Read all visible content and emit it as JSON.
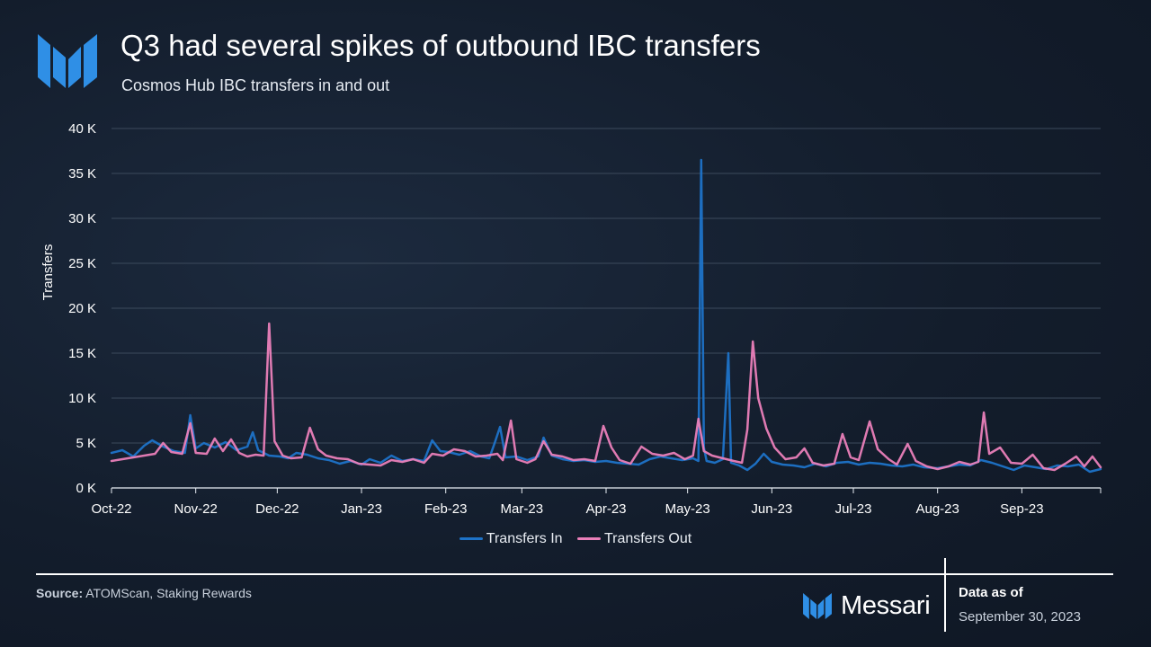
{
  "header": {
    "title": "Q3 had several spikes of outbound IBC transfers",
    "subtitle": "Cosmos Hub IBC transfers in and out",
    "logo_icon": "messari-logo-icon"
  },
  "chart_data": {
    "type": "line",
    "ylabel": "Transfers",
    "xlabel": "",
    "ylim": [
      0,
      40000
    ],
    "y_ticks": [
      {
        "value": 0,
        "label": "0 K"
      },
      {
        "value": 5000,
        "label": "5 K"
      },
      {
        "value": 10000,
        "label": "10 K"
      },
      {
        "value": 15000,
        "label": "15 K"
      },
      {
        "value": 20000,
        "label": "20 K"
      },
      {
        "value": 25000,
        "label": "25 K"
      },
      {
        "value": 30000,
        "label": "30 K"
      },
      {
        "value": 35000,
        "label": "35 K"
      },
      {
        "value": 40000,
        "label": "40 K"
      }
    ],
    "x_range": [
      "2022-10-01",
      "2023-09-30"
    ],
    "x_ticks": [
      {
        "date": "2022-10-01",
        "label": "Oct-22"
      },
      {
        "date": "2022-11-01",
        "label": "Nov-22"
      },
      {
        "date": "2022-12-01",
        "label": "Dec-22"
      },
      {
        "date": "2023-01-01",
        "label": "Jan-23"
      },
      {
        "date": "2023-02-01",
        "label": "Feb-23"
      },
      {
        "date": "2023-03-01",
        "label": "Mar-23"
      },
      {
        "date": "2023-04-01",
        "label": "Apr-23"
      },
      {
        "date": "2023-05-01",
        "label": "May-23"
      },
      {
        "date": "2023-06-01",
        "label": "Jun-23"
      },
      {
        "date": "2023-07-01",
        "label": "Jul-23"
      },
      {
        "date": "2023-08-01",
        "label": "Aug-23"
      },
      {
        "date": "2023-09-01",
        "label": "Sep-23"
      }
    ],
    "grid": true,
    "legend_position": "bottom-center",
    "series": [
      {
        "name": "Transfers In",
        "color": "#1e73c8",
        "points": [
          [
            "2022-10-01",
            3900
          ],
          [
            "2022-10-05",
            4200
          ],
          [
            "2022-10-09",
            3500
          ],
          [
            "2022-10-13",
            4700
          ],
          [
            "2022-10-16",
            5300
          ],
          [
            "2022-10-20",
            4600
          ],
          [
            "2022-10-24",
            4100
          ],
          [
            "2022-10-28",
            3900
          ],
          [
            "2022-10-30",
            8100
          ],
          [
            "2022-11-01",
            4400
          ],
          [
            "2022-11-04",
            5000
          ],
          [
            "2022-11-08",
            4500
          ],
          [
            "2022-11-12",
            5100
          ],
          [
            "2022-11-16",
            4200
          ],
          [
            "2022-11-20",
            4600
          ],
          [
            "2022-11-22",
            6200
          ],
          [
            "2022-11-24",
            4200
          ],
          [
            "2022-11-28",
            3600
          ],
          [
            "2022-12-02",
            3500
          ],
          [
            "2022-12-05",
            3300
          ],
          [
            "2022-12-08",
            3900
          ],
          [
            "2022-12-12",
            3700
          ],
          [
            "2022-12-16",
            3300
          ],
          [
            "2022-12-20",
            3100
          ],
          [
            "2022-12-24",
            2700
          ],
          [
            "2022-12-28",
            3000
          ],
          [
            "2023-01-01",
            2600
          ],
          [
            "2023-01-04",
            3200
          ],
          [
            "2023-01-08",
            2800
          ],
          [
            "2023-01-12",
            3600
          ],
          [
            "2023-01-16",
            3000
          ],
          [
            "2023-01-20",
            3200
          ],
          [
            "2023-01-24",
            3000
          ],
          [
            "2023-01-27",
            5300
          ],
          [
            "2023-01-30",
            4100
          ],
          [
            "2023-02-02",
            4000
          ],
          [
            "2023-02-06",
            3700
          ],
          [
            "2023-02-10",
            4100
          ],
          [
            "2023-02-14",
            3500
          ],
          [
            "2023-02-17",
            3300
          ],
          [
            "2023-02-19",
            5000
          ],
          [
            "2023-02-21",
            6800
          ],
          [
            "2023-02-23",
            3400
          ],
          [
            "2023-02-27",
            3500
          ],
          [
            "2023-03-03",
            3100
          ],
          [
            "2023-03-07",
            3500
          ],
          [
            "2023-03-09",
            5600
          ],
          [
            "2023-03-12",
            3600
          ],
          [
            "2023-03-16",
            3200
          ],
          [
            "2023-03-20",
            3000
          ],
          [
            "2023-03-24",
            3100
          ],
          [
            "2023-03-28",
            2900
          ],
          [
            "2023-04-01",
            3000
          ],
          [
            "2023-04-05",
            2800
          ],
          [
            "2023-04-09",
            2700
          ],
          [
            "2023-04-13",
            2600
          ],
          [
            "2023-04-17",
            3200
          ],
          [
            "2023-04-21",
            3500
          ],
          [
            "2023-04-25",
            3300
          ],
          [
            "2023-04-29",
            3100
          ],
          [
            "2023-05-03",
            3300
          ],
          [
            "2023-05-05",
            3000
          ],
          [
            "2023-05-06",
            36500
          ],
          [
            "2023-05-07",
            4500
          ],
          [
            "2023-05-08",
            3000
          ],
          [
            "2023-05-11",
            2800
          ],
          [
            "2023-05-14",
            3200
          ],
          [
            "2023-05-16",
            15000
          ],
          [
            "2023-05-17",
            2800
          ],
          [
            "2023-05-20",
            2500
          ],
          [
            "2023-05-23",
            2000
          ],
          [
            "2023-05-26",
            2700
          ],
          [
            "2023-05-29",
            3800
          ],
          [
            "2023-06-01",
            2900
          ],
          [
            "2023-06-05",
            2600
          ],
          [
            "2023-06-09",
            2500
          ],
          [
            "2023-06-13",
            2300
          ],
          [
            "2023-06-17",
            2700
          ],
          [
            "2023-06-21",
            2400
          ],
          [
            "2023-06-25",
            2800
          ],
          [
            "2023-06-29",
            2900
          ],
          [
            "2023-07-03",
            2600
          ],
          [
            "2023-07-07",
            2800
          ],
          [
            "2023-07-11",
            2700
          ],
          [
            "2023-07-15",
            2500
          ],
          [
            "2023-07-19",
            2400
          ],
          [
            "2023-07-23",
            2600
          ],
          [
            "2023-07-27",
            2300
          ],
          [
            "2023-08-01",
            2200
          ],
          [
            "2023-08-05",
            2400
          ],
          [
            "2023-08-09",
            2600
          ],
          [
            "2023-08-13",
            2500
          ],
          [
            "2023-08-17",
            3100
          ],
          [
            "2023-08-21",
            2800
          ],
          [
            "2023-08-25",
            2400
          ],
          [
            "2023-08-29",
            2000
          ],
          [
            "2023-09-02",
            2500
          ],
          [
            "2023-09-06",
            2300
          ],
          [
            "2023-09-10",
            2100
          ],
          [
            "2023-09-14",
            2500
          ],
          [
            "2023-09-18",
            2400
          ],
          [
            "2023-09-22",
            2600
          ],
          [
            "2023-09-26",
            1800
          ],
          [
            "2023-09-30",
            2100
          ]
        ]
      },
      {
        "name": "Transfers Out",
        "color": "#ea7fb9",
        "points": [
          [
            "2022-10-01",
            3000
          ],
          [
            "2022-10-05",
            3200
          ],
          [
            "2022-10-09",
            3400
          ],
          [
            "2022-10-13",
            3600
          ],
          [
            "2022-10-17",
            3800
          ],
          [
            "2022-10-20",
            5000
          ],
          [
            "2022-10-23",
            4000
          ],
          [
            "2022-10-27",
            3800
          ],
          [
            "2022-10-30",
            7200
          ],
          [
            "2022-11-01",
            3900
          ],
          [
            "2022-11-05",
            3800
          ],
          [
            "2022-11-08",
            5500
          ],
          [
            "2022-11-11",
            4100
          ],
          [
            "2022-11-14",
            5400
          ],
          [
            "2022-11-17",
            3900
          ],
          [
            "2022-11-20",
            3500
          ],
          [
            "2022-11-23",
            3700
          ],
          [
            "2022-11-26",
            3600
          ],
          [
            "2022-11-28",
            18300
          ],
          [
            "2022-11-30",
            5200
          ],
          [
            "2022-12-03",
            3600
          ],
          [
            "2022-12-06",
            3300
          ],
          [
            "2022-12-10",
            3400
          ],
          [
            "2022-12-13",
            6700
          ],
          [
            "2022-12-16",
            4300
          ],
          [
            "2022-12-19",
            3600
          ],
          [
            "2022-12-23",
            3300
          ],
          [
            "2022-12-27",
            3200
          ],
          [
            "2022-12-31",
            2700
          ],
          [
            "2023-01-04",
            2600
          ],
          [
            "2023-01-08",
            2500
          ],
          [
            "2023-01-12",
            3100
          ],
          [
            "2023-01-16",
            2900
          ],
          [
            "2023-01-20",
            3200
          ],
          [
            "2023-01-24",
            2800
          ],
          [
            "2023-01-27",
            3800
          ],
          [
            "2023-01-31",
            3600
          ],
          [
            "2023-02-04",
            4300
          ],
          [
            "2023-02-08",
            4100
          ],
          [
            "2023-02-12",
            3500
          ],
          [
            "2023-02-16",
            3600
          ],
          [
            "2023-02-20",
            3800
          ],
          [
            "2023-02-22",
            3100
          ],
          [
            "2023-02-25",
            7500
          ],
          [
            "2023-02-27",
            3200
          ],
          [
            "2023-03-03",
            2800
          ],
          [
            "2023-03-06",
            3200
          ],
          [
            "2023-03-09",
            5200
          ],
          [
            "2023-03-12",
            3700
          ],
          [
            "2023-03-16",
            3500
          ],
          [
            "2023-03-20",
            3100
          ],
          [
            "2023-03-24",
            3200
          ],
          [
            "2023-03-28",
            3000
          ],
          [
            "2023-03-31",
            6900
          ],
          [
            "2023-04-03",
            4500
          ],
          [
            "2023-04-06",
            3100
          ],
          [
            "2023-04-10",
            2700
          ],
          [
            "2023-04-14",
            4600
          ],
          [
            "2023-04-18",
            3800
          ],
          [
            "2023-04-22",
            3600
          ],
          [
            "2023-04-26",
            3900
          ],
          [
            "2023-04-30",
            3200
          ],
          [
            "2023-05-03",
            3600
          ],
          [
            "2023-05-05",
            7700
          ],
          [
            "2023-05-07",
            4100
          ],
          [
            "2023-05-10",
            3600
          ],
          [
            "2023-05-14",
            3300
          ],
          [
            "2023-05-18",
            3000
          ],
          [
            "2023-05-21",
            2800
          ],
          [
            "2023-05-23",
            6500
          ],
          [
            "2023-05-25",
            16300
          ],
          [
            "2023-05-27",
            10000
          ],
          [
            "2023-05-30",
            6600
          ],
          [
            "2023-06-02",
            4500
          ],
          [
            "2023-06-06",
            3200
          ],
          [
            "2023-06-10",
            3400
          ],
          [
            "2023-06-13",
            4400
          ],
          [
            "2023-06-16",
            2800
          ],
          [
            "2023-06-20",
            2500
          ],
          [
            "2023-06-24",
            2700
          ],
          [
            "2023-06-27",
            6000
          ],
          [
            "2023-06-30",
            3400
          ],
          [
            "2023-07-03",
            3100
          ],
          [
            "2023-07-07",
            7400
          ],
          [
            "2023-07-10",
            4300
          ],
          [
            "2023-07-14",
            3200
          ],
          [
            "2023-07-17",
            2600
          ],
          [
            "2023-07-21",
            4900
          ],
          [
            "2023-07-24",
            3000
          ],
          [
            "2023-07-28",
            2400
          ],
          [
            "2023-08-01",
            2100
          ],
          [
            "2023-08-05",
            2400
          ],
          [
            "2023-08-09",
            2900
          ],
          [
            "2023-08-13",
            2600
          ],
          [
            "2023-08-16",
            2900
          ],
          [
            "2023-08-18",
            8400
          ],
          [
            "2023-08-20",
            3800
          ],
          [
            "2023-08-24",
            4500
          ],
          [
            "2023-08-28",
            2800
          ],
          [
            "2023-09-01",
            2700
          ],
          [
            "2023-09-05",
            3700
          ],
          [
            "2023-09-09",
            2200
          ],
          [
            "2023-09-13",
            2000
          ],
          [
            "2023-09-17",
            2700
          ],
          [
            "2023-09-21",
            3500
          ],
          [
            "2023-09-24",
            2400
          ],
          [
            "2023-09-27",
            3500
          ],
          [
            "2023-09-30",
            2300
          ]
        ]
      }
    ]
  },
  "legend": {
    "in_label": "Transfers In",
    "out_label": "Transfers Out"
  },
  "footer": {
    "source_label": "Source:",
    "source_text": " ATOMScan, Staking Rewards",
    "brand_name": "Messari",
    "data_as_of_label": "Data as of",
    "data_as_of_date": "September 30, 2023"
  },
  "colors": {
    "transfers_in": "#1e73c8",
    "transfers_out": "#ea7fb9",
    "logo": "#2f8fe6"
  }
}
